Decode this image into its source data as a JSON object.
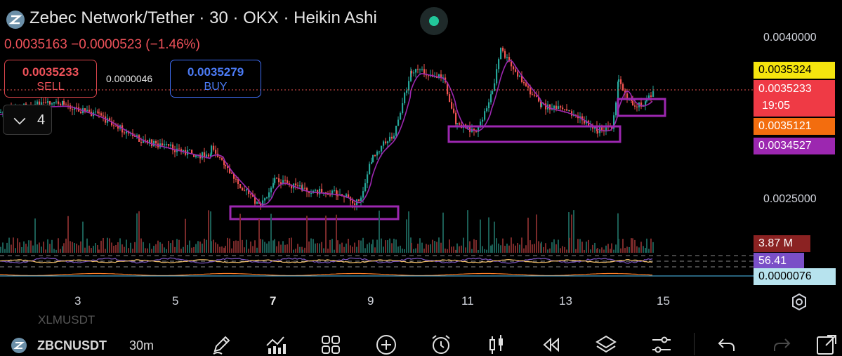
{
  "header": {
    "title": "Zebec Network/Tether · 30 · OKX · Heikin Ashi",
    "ohlc_summary": "0.0035163  −0.0000523 (−1.46%)"
  },
  "trade": {
    "sell_price": "0.0035233",
    "sell_label": "SELL",
    "spread": "0.0000046",
    "buy_price": "0.0035279",
    "buy_label": "BUY"
  },
  "indicators_toggle": {
    "count": "4"
  },
  "price_axis": {
    "ticks": [
      "0.0040000",
      "0.0025000"
    ],
    "tags": [
      {
        "value": "0.0035324",
        "color": "#f5e50e",
        "text_color": "#000000"
      },
      {
        "value": "0.0035233",
        "color": "#ef3a45",
        "text_color": "#ffffff",
        "countdown": "19:05"
      },
      {
        "value": "0.0035121",
        "color": "#f36d0e",
        "text_color": "#ffffff"
      },
      {
        "value": "0.0034527",
        "color": "#9c27b0",
        "text_color": "#ffffff"
      }
    ],
    "volume_tag": {
      "value": "3.87 M",
      "color": "#8b2222"
    },
    "rsi_tag": {
      "value": "56.41",
      "color": "#7a4fc7"
    },
    "macd_tag": {
      "value": "0.0000076",
      "color": "#b7e3ee"
    }
  },
  "time_axis": {
    "labels": [
      "3",
      "5",
      "7",
      "9",
      "11",
      "13",
      "15"
    ],
    "bold_labels": [
      "7"
    ]
  },
  "bottom_toolbar": {
    "watermark_symbol": "XLMUSDT",
    "symbol": "ZBCNUSDT",
    "interval": "30m",
    "tools": [
      "draw-pencil-icon",
      "indicators-icon",
      "layout-grid-icon",
      "add-circle-icon",
      "alarm-clock-icon",
      "candle-type-icon",
      "replay-icon",
      "layers-icon",
      "settings-sliders-icon",
      "undo-icon",
      "redo-icon",
      "share-icon"
    ]
  },
  "colors": {
    "up": "#26a69a",
    "down": "#ef5350",
    "zone_box": "#9c27b0",
    "ma": "#9c27b0",
    "current_price_line": "#ef5350"
  }
}
